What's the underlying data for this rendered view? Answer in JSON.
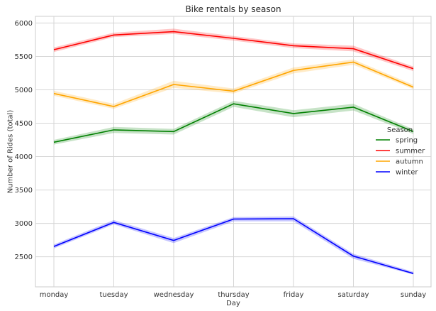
{
  "chart_data": {
    "type": "line",
    "title": "Bike rentals by season",
    "xlabel": "Day",
    "ylabel": "Number of Rides (total)",
    "categories": [
      "monday",
      "tuesday",
      "wednesday",
      "thursday",
      "friday",
      "saturday",
      "sunday"
    ],
    "ylim": [
      2050,
      6100
    ],
    "yticks": [
      2500,
      3000,
      3500,
      4000,
      4500,
      5000,
      5500,
      6000
    ],
    "grid": true,
    "legend": {
      "title": "Season",
      "position": "right"
    },
    "series": [
      {
        "name": "spring",
        "color": "#008000",
        "values": [
          4215,
          4400,
          4375,
          4790,
          4645,
          4740,
          4375
        ],
        "lower": [
          4180,
          4355,
          4330,
          4745,
          4590,
          4690,
          4340
        ],
        "upper": [
          4250,
          4445,
          4415,
          4835,
          4695,
          4790,
          4410
        ]
      },
      {
        "name": "summer",
        "color": "#ff0000",
        "values": [
          5600,
          5820,
          5870,
          5770,
          5660,
          5615,
          5315
        ],
        "lower": [
          5565,
          5790,
          5835,
          5735,
          5625,
          5575,
          5280
        ],
        "upper": [
          5635,
          5855,
          5915,
          5805,
          5695,
          5660,
          5350
        ]
      },
      {
        "name": "autumn",
        "color": "#ffa500",
        "values": [
          4945,
          4750,
          5080,
          4980,
          5290,
          5415,
          5040
        ],
        "lower": [
          4910,
          4715,
          5030,
          4945,
          5245,
          5375,
          5010
        ],
        "upper": [
          4985,
          4790,
          5135,
          5020,
          5335,
          5455,
          5075
        ]
      },
      {
        "name": "winter",
        "color": "#0000ff",
        "values": [
          2655,
          3015,
          2745,
          3065,
          3070,
          2510,
          2250
        ],
        "lower": [
          2625,
          2985,
          2705,
          3030,
          3030,
          2470,
          2235
        ],
        "upper": [
          2685,
          3050,
          2780,
          3095,
          3105,
          2545,
          2275
        ]
      }
    ]
  }
}
